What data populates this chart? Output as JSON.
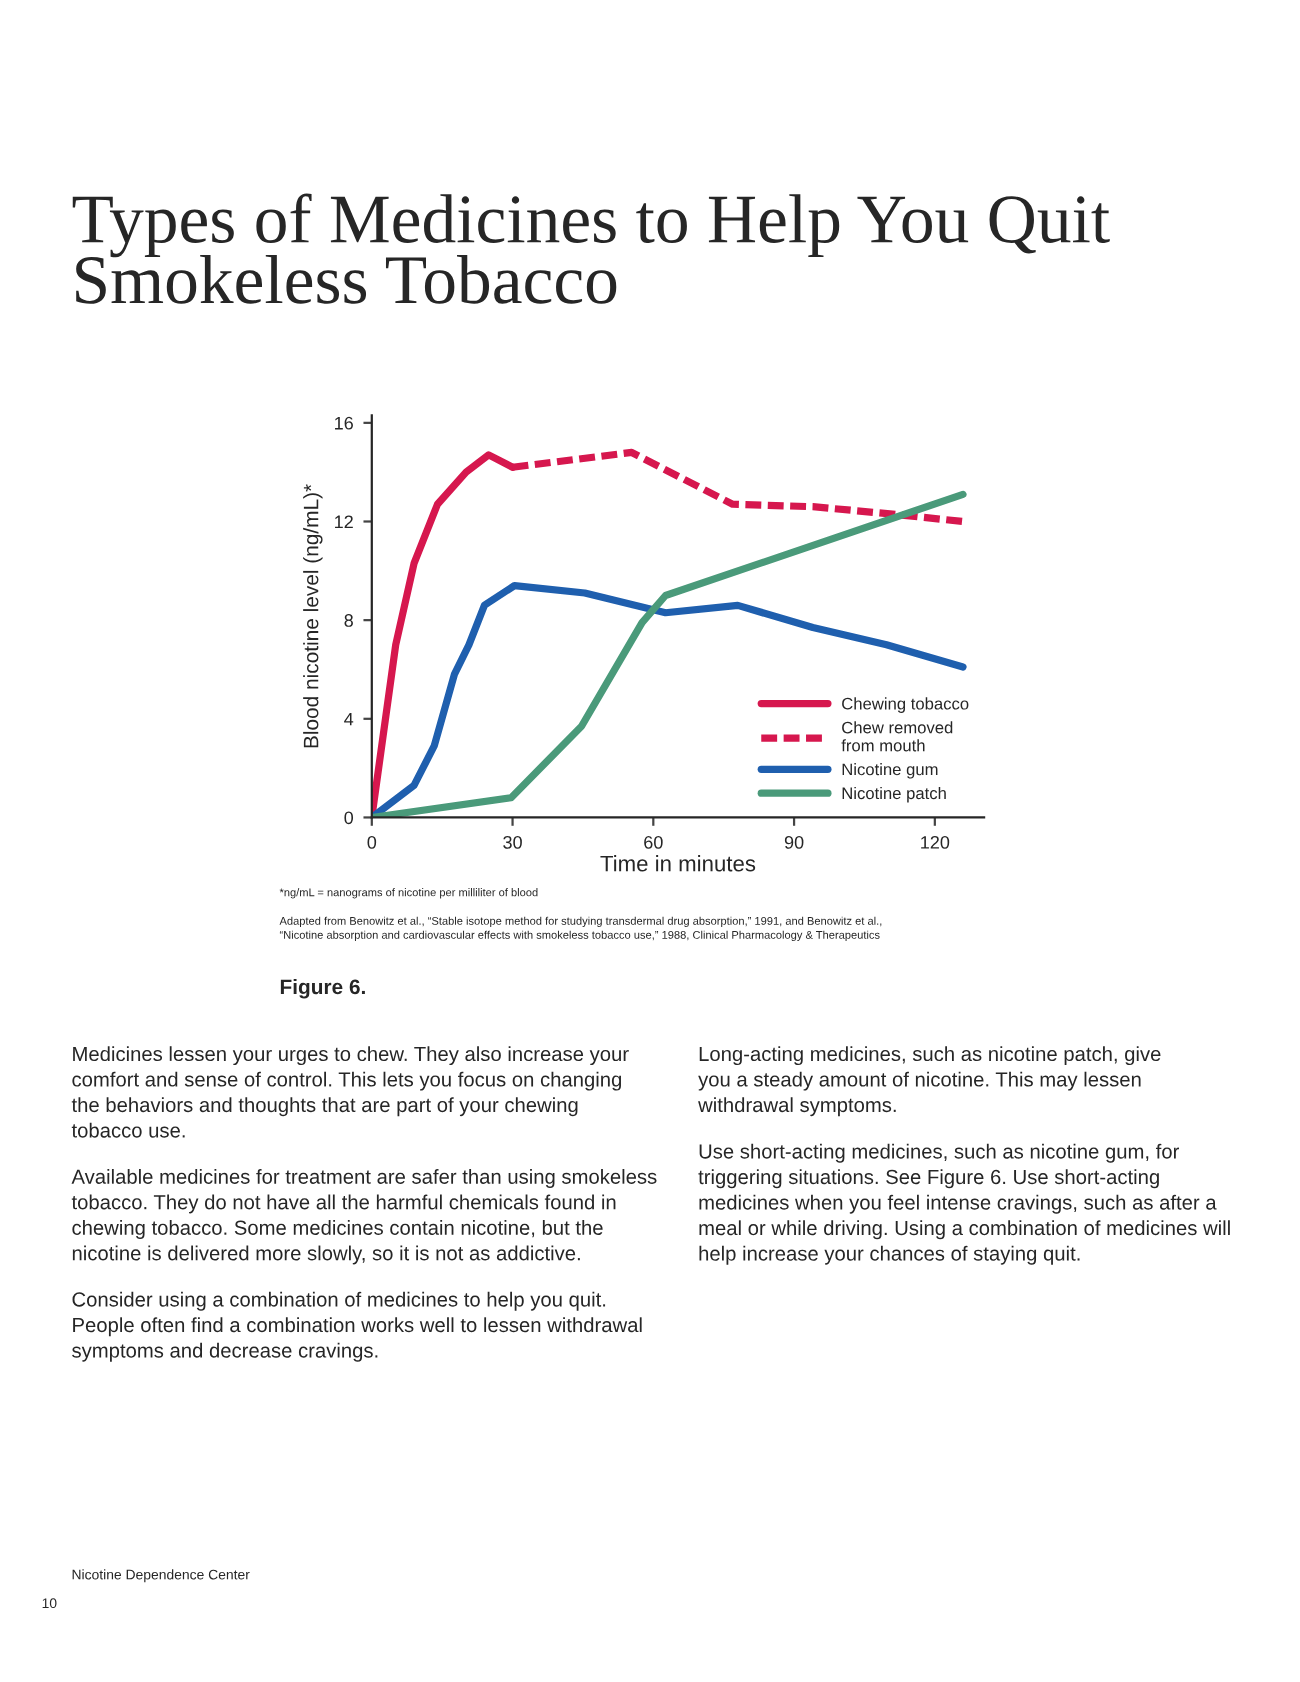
{
  "chart_data": {
    "type": "line",
    "title": "Types of Medicines to Help You Quit\nSmokeless Tobacco",
    "xlabel": "Time in minutes",
    "ylabel": "Blood nicotine level (ng/mL)*",
    "xlim": [
      0,
      130.5
    ],
    "ylim": [
      0,
      16.3
    ],
    "xticks": [
      0,
      30,
      60,
      90,
      120
    ],
    "yticks": [
      0,
      4,
      8,
      12,
      16
    ],
    "grid": false,
    "legend": "bottom right",
    "series": [
      {
        "name": "Chewing tobacco",
        "color": "#d6174e",
        "line_style": "solid",
        "x": [
          0,
          5.1,
          9,
          14,
          20.1,
          24.9,
          30
        ],
        "values": [
          0,
          7.0,
          10.3,
          12.7,
          14.0,
          14.7,
          14.2
        ]
      },
      {
        "name": "Chew removed\nfrom mouth",
        "color": "#d6174e",
        "line_style": "dashed",
        "x": [
          30,
          55.4,
          76.9,
          94,
          111,
          126
        ],
        "values": [
          14.2,
          14.8,
          12.7,
          12.6,
          12.3,
          12.0
        ]
      },
      {
        "name": "Nicotine gum",
        "color": "#1f5fae",
        "line_style": "solid",
        "x": [
          0,
          9,
          13.3,
          17.6,
          20.7,
          24,
          30.4,
          45.4,
          62.6,
          78,
          94,
          109.7,
          126
        ],
        "values": [
          0,
          1.3,
          2.9,
          5.8,
          7.0,
          8.6,
          9.4,
          9.1,
          8.3,
          8.6,
          7.7,
          7.0,
          6.1
        ]
      },
      {
        "name": "Nicotine patch",
        "color": "#4a9a7a",
        "line_style": "solid",
        "x": [
          0,
          29.7,
          44.7,
          57.6,
          62.6,
          126
        ],
        "values": [
          0,
          0.8,
          3.7,
          7.9,
          9.0,
          13.1
        ]
      }
    ],
    "annotations": [
      "*ng/mL = nanograms of nicotine per milliliter of blood",
      "Adapted from Benowitz et al., “Stable isotope method for studying transdermal drug absorption,” 1991, and Benowitz et al.,\n“Nicotine absorption and cardiovascular effects with smokeless tobacco use,” 1988, Clinical Pharmacology & Therapeutics",
      "Figure 6.",
      "Medicines lessen your urges to chew. They also increase your\ncomfort and sense of control. This lets you focus on changing\nthe behaviors and thoughts that are part of your chewing\ntobacco use.",
      "Available medicines for treatment are safer than using smokeless\ntobacco. They do not have all the harmful chemicals found in\nchewing tobacco. Some medicines contain nicotine, but the\nnicotine is delivered more slowly, so it is not as addictive.",
      "Consider using a combination of medicines to help you quit.\nPeople often find a combination works well to lessen withdrawal\nsymptoms and decrease cravings.",
      "Long-acting medicines, such as nicotine patch, give\nyou a steady amount of nicotine. This may lessen\nwithdrawal symptoms.",
      "Use short-acting medicines, such as nicotine gum, for\ntriggering situations. See Figure 6. Use short-acting\nmedicines when you feel intense cravings, such as after a\nmeal or while driving. Using a combination of medicines will\nhelp increase your chances of staying quit.",
      "Nicotine Dependence Center",
      "10"
    ]
  }
}
